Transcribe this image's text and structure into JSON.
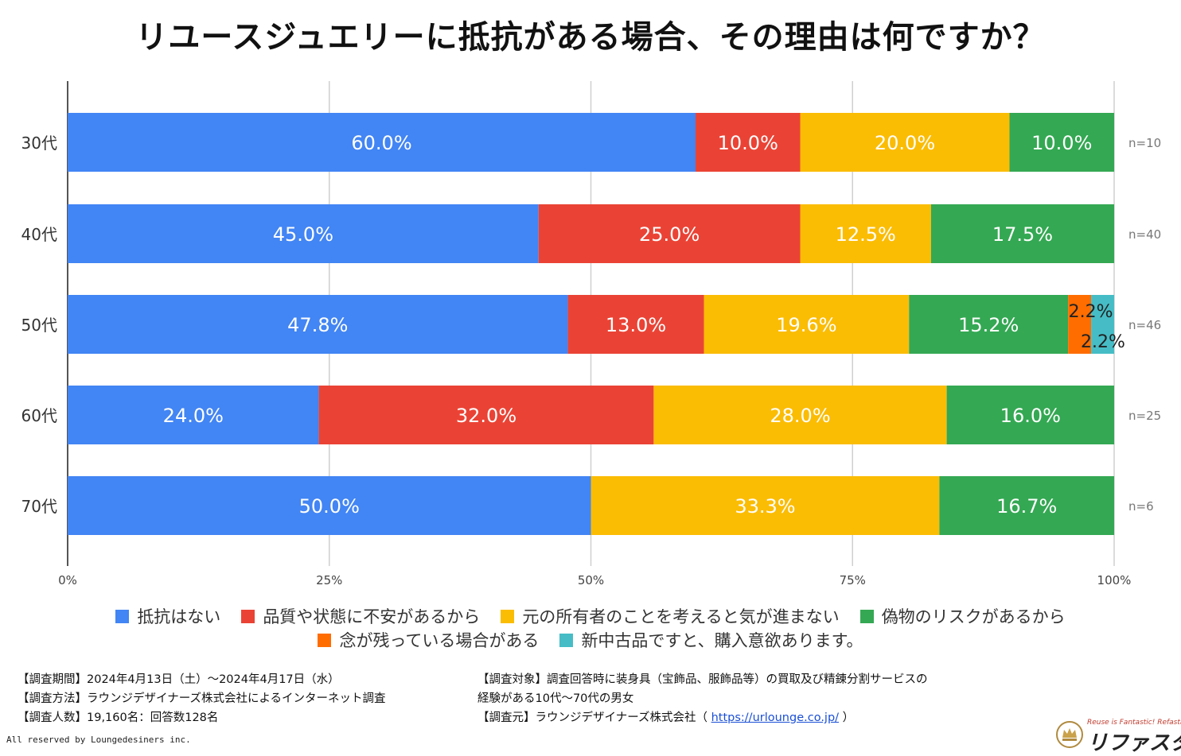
{
  "title": "リユースジュエリーに抵抗がある場合、その理由は何ですか？",
  "chart_data": {
    "type": "bar",
    "orientation": "horizontal",
    "stacked": true,
    "percent_stacked": true,
    "title": "リユースジュエリーに抵抗がある場合、その理由は何ですか？",
    "categories": [
      "30代",
      "40代",
      "50代",
      "60代",
      "70代"
    ],
    "sample_sizes": [
      "n=10",
      "n=40",
      "n=46",
      "n=25",
      "n=6"
    ],
    "x_ticks": [
      "0%",
      "25%",
      "50%",
      "75%",
      "100%"
    ],
    "xlim": [
      0,
      100
    ],
    "legend_position": "bottom",
    "series": [
      {
        "name": "抵抗はない",
        "color": "#4285F4",
        "values": [
          60.0,
          45.0,
          47.8,
          24.0,
          50.0
        ],
        "labels": [
          "60.0%",
          "45.0%",
          "47.8%",
          "24.0%",
          "50.0%"
        ]
      },
      {
        "name": "品質や状態に不安があるから",
        "color": "#EA4335",
        "values": [
          10.0,
          25.0,
          13.0,
          32.0,
          0
        ],
        "labels": [
          "10.0%",
          "25.0%",
          "13.0%",
          "32.0%",
          ""
        ]
      },
      {
        "name": "元の所有者のことを考えると気が進まない",
        "color": "#FBBC04",
        "values": [
          20.0,
          12.5,
          19.6,
          28.0,
          33.3
        ],
        "labels": [
          "20.0%",
          "12.5%",
          "19.6%",
          "28.0%",
          "33.3%"
        ]
      },
      {
        "name": "偽物のリスクがあるから",
        "color": "#34A853",
        "values": [
          10.0,
          17.5,
          15.2,
          16.0,
          16.7
        ],
        "labels": [
          "10.0%",
          "17.5%",
          "15.2%",
          "16.0%",
          "16.7%"
        ]
      },
      {
        "name": "念が残っている場合がある",
        "color": "#FF6D01",
        "values": [
          0,
          0,
          2.2,
          0,
          0
        ],
        "labels": [
          "",
          "",
          "2.2%",
          "",
          ""
        ]
      },
      {
        "name": "新中古品ですと、購入意欲あります。",
        "color": "#46BDC6",
        "values": [
          0,
          0,
          2.2,
          0,
          0
        ],
        "labels": [
          "",
          "",
          "2.2%",
          "",
          ""
        ]
      }
    ]
  },
  "notes_left": [
    "【調査期間】2024年4月13日（土）～2024年4月17日（水）",
    "【調査方法】ラウンジデザイナーズ株式会社によるインターネット調査",
    "【調査人数】19,160名：回答数128名"
  ],
  "notes_right": {
    "line1": "【調査対象】調査回答時に装身具（宝飾品、服飾品等）の買取及び精錬分割サービスの",
    "line2": "経験がある10代～70代の男女",
    "line3_prefix": "【調査元】ラウンジデザイナーズ株式会社（ ",
    "line3_link": "https://urlounge.co.jp/",
    "line3_suffix": " ）"
  },
  "copyright": "All reserved by Loungedesiners inc.",
  "logo": {
    "tagline": "Reuse is Fantastic! Refasta",
    "word": "リファスタ",
    "mark": "®"
  }
}
